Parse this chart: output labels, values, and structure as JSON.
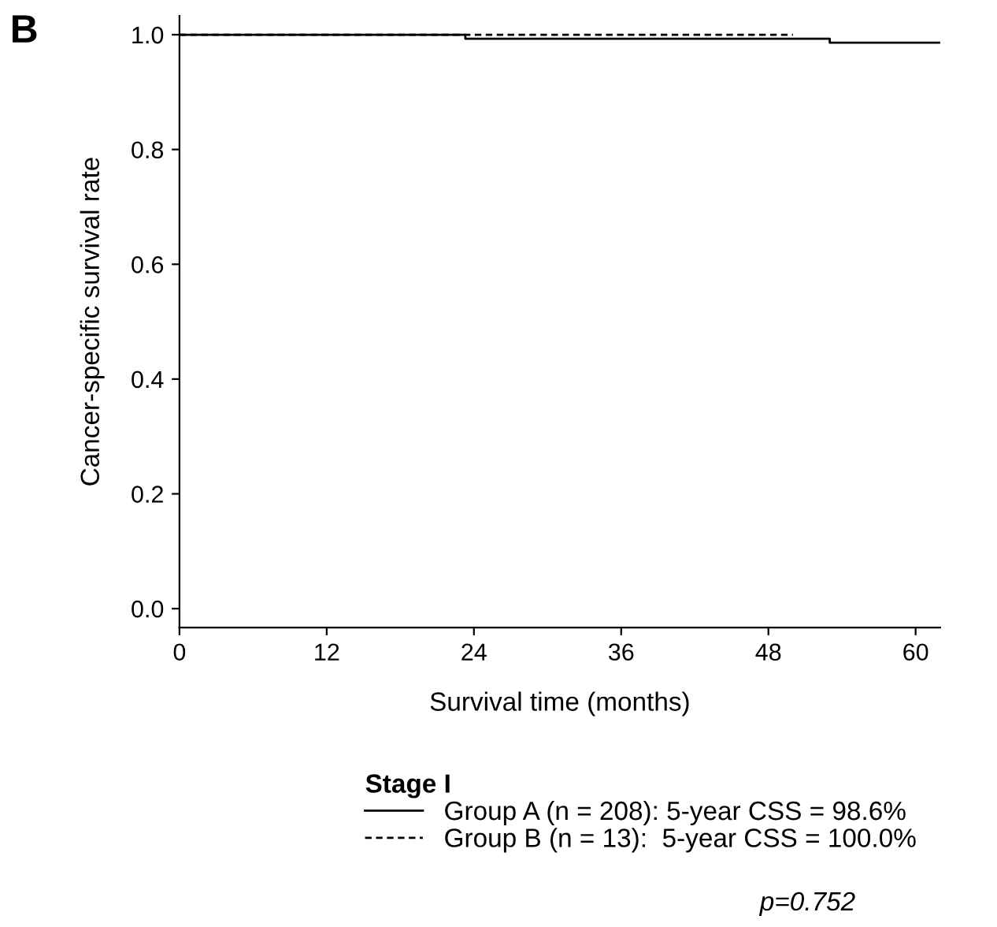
{
  "chart_data": {
    "type": "step",
    "xlabel": "Survival time (months)",
    "ylabel": "Cancer-specific survival rate",
    "legend_title": "Stage I",
    "series": [
      {
        "name": "Group A (n = 208): 5-year CSS = 98.6%",
        "color": "#000000",
        "line_style": "solid",
        "x": [
          0,
          23.3,
          53,
          62
        ],
        "values": [
          1.0,
          0.993,
          0.986,
          0.986
        ]
      },
      {
        "name": "Group B (n = 13):  5-year CSS = 100.0%",
        "color": "#000000",
        "line_style": "dashed",
        "x": [
          0,
          50
        ],
        "values": [
          1.0,
          1.0
        ]
      }
    ],
    "xlim": [
      0,
      62
    ],
    "xticks": [
      0,
      12,
      24,
      36,
      48,
      60
    ],
    "ylim": [
      -0.033,
      1.033
    ],
    "yticks": [
      {
        "value": 0,
        "label": "0.0"
      },
      {
        "value": 0.2,
        "label": "0.2"
      },
      {
        "value": 0.4,
        "label": "0.4"
      },
      {
        "value": 0.6,
        "label": "0.6"
      },
      {
        "value": 0.8,
        "label": "0.8"
      },
      {
        "value": 1.0,
        "label": "1.0"
      }
    ],
    "grid": false,
    "legend": "bottom",
    "annotations": [
      "B",
      "p=0.752"
    ]
  }
}
